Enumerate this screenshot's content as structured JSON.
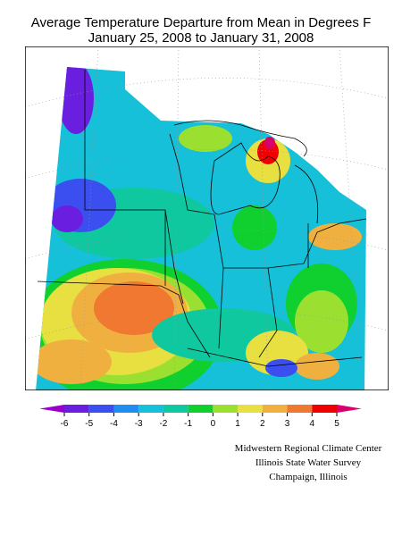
{
  "title": [
    "Average Temperature Departure from Mean in Degrees F",
    "January 25, 2008 to January 31, 2008"
  ],
  "legend": {
    "ticks": [
      -6,
      -5,
      -4,
      -3,
      -2,
      -1,
      0,
      1,
      2,
      3,
      4,
      5
    ],
    "colors": [
      "#9900cc",
      "#6a1ee0",
      "#3b4ef0",
      "#1f8ef0",
      "#15c0d8",
      "#10c8a0",
      "#10d030",
      "#9be030",
      "#e8e040",
      "#f0b040",
      "#f07830",
      "#f00000",
      "#d8006a"
    ]
  },
  "credits": [
    "Midwestern Regional Climate Center",
    "Illinois State Water Survey",
    "Champaign, Illinois"
  ]
}
